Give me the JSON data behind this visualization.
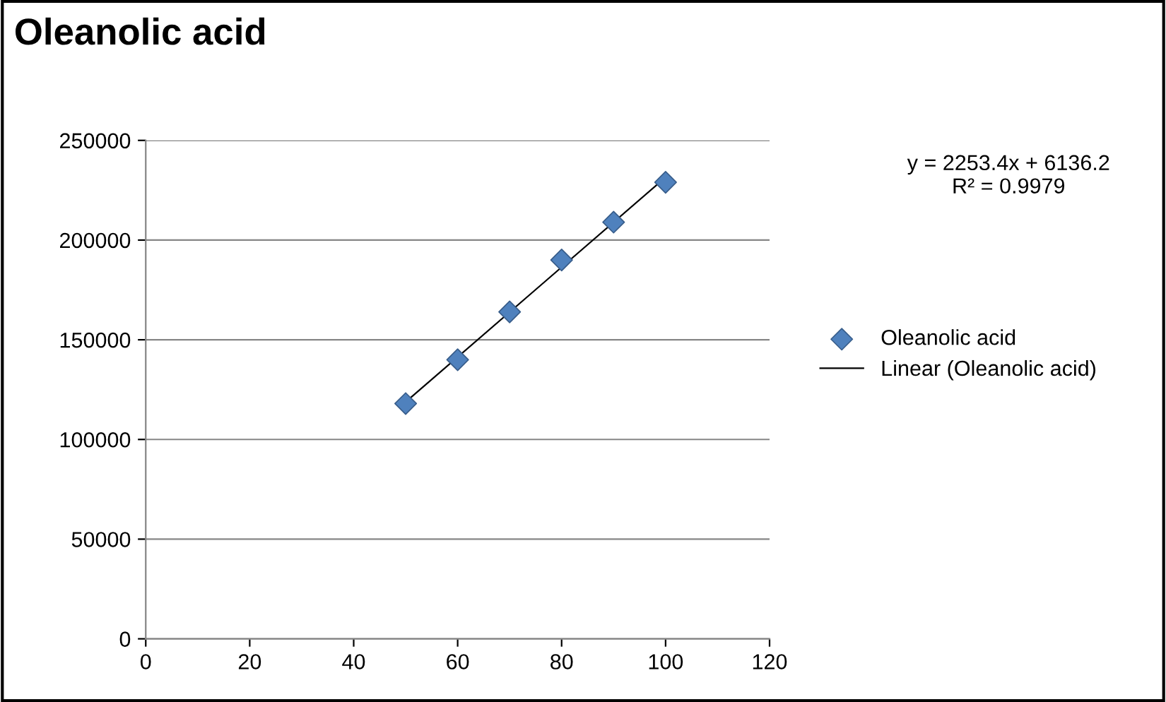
{
  "chart_data": {
    "type": "scatter",
    "title": "Oleanolic acid",
    "x": [
      50,
      60,
      70,
      80,
      90,
      100
    ],
    "series": [
      {
        "name": "Oleanolic acid",
        "color": "#4f81bd",
        "marker": "diamond",
        "values": [
          118000,
          140000,
          164000,
          190000,
          209000,
          229000
        ]
      },
      {
        "name": "Linear (Oleanolic acid)",
        "type": "line",
        "color": "#000000",
        "marker": "none",
        "line_style": "solid",
        "x": [
          50,
          100
        ],
        "values": [
          118800,
          231500
        ]
      }
    ],
    "annotations": [
      "y = 2253.4x + 6136.2",
      "R² = 0.9979"
    ],
    "xlim": [
      0,
      120
    ],
    "xticks": [
      0,
      20,
      40,
      60,
      80,
      100,
      120
    ],
    "ylim": [
      0,
      250000
    ],
    "yticks": [
      0,
      50000,
      100000,
      150000,
      200000,
      250000
    ],
    "grid": "y",
    "legend": "right"
  }
}
